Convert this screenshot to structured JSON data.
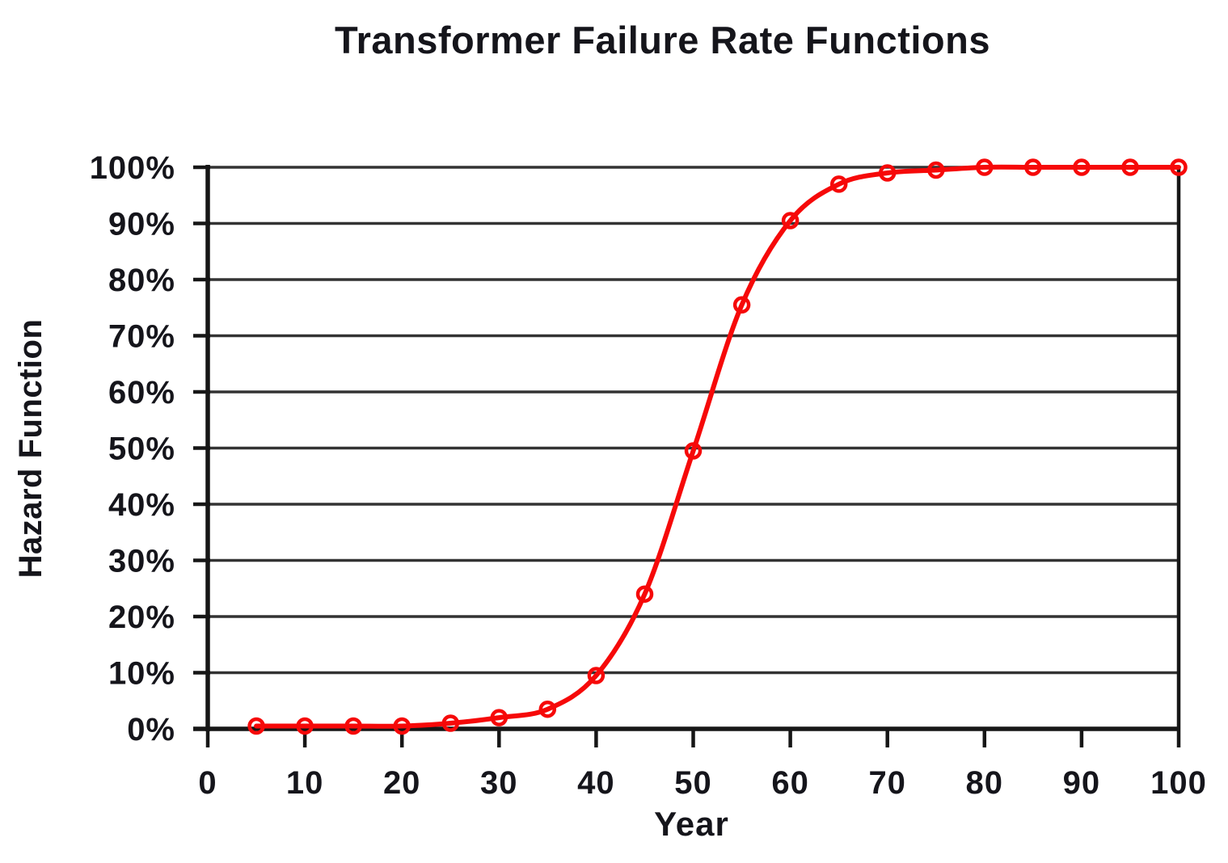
{
  "chart_data": {
    "type": "line",
    "title": "Transformer Failure Rate Functions",
    "xlabel": "Year",
    "ylabel": "Hazard Function",
    "xlim": [
      0,
      100
    ],
    "ylim": [
      0,
      100
    ],
    "x_ticks": [
      0,
      10,
      20,
      30,
      40,
      50,
      60,
      70,
      80,
      90,
      100
    ],
    "y_ticks": [
      0,
      10,
      20,
      30,
      40,
      50,
      60,
      70,
      80,
      90,
      100
    ],
    "y_tick_suffix": "%",
    "grid": "horizontal",
    "legend_position": "none",
    "x": [
      5,
      10,
      15,
      20,
      25,
      30,
      35,
      40,
      45,
      50,
      55,
      60,
      65,
      70,
      75,
      80,
      85,
      90,
      95,
      100
    ],
    "series": [
      {
        "name": "Hazard Function",
        "color": "#f60909",
        "marker": "open-circle",
        "values": [
          0.5,
          0.5,
          0.5,
          0.5,
          1,
          2,
          3.5,
          9.5,
          24,
          49.5,
          75.5,
          90.5,
          97,
          99,
          99.5,
          100,
          100,
          100,
          100,
          100
        ]
      }
    ]
  },
  "style": {
    "background": "#ffffff",
    "axis_color": "#161616",
    "grid_color": "#333333",
    "text_color": "#15151b"
  }
}
